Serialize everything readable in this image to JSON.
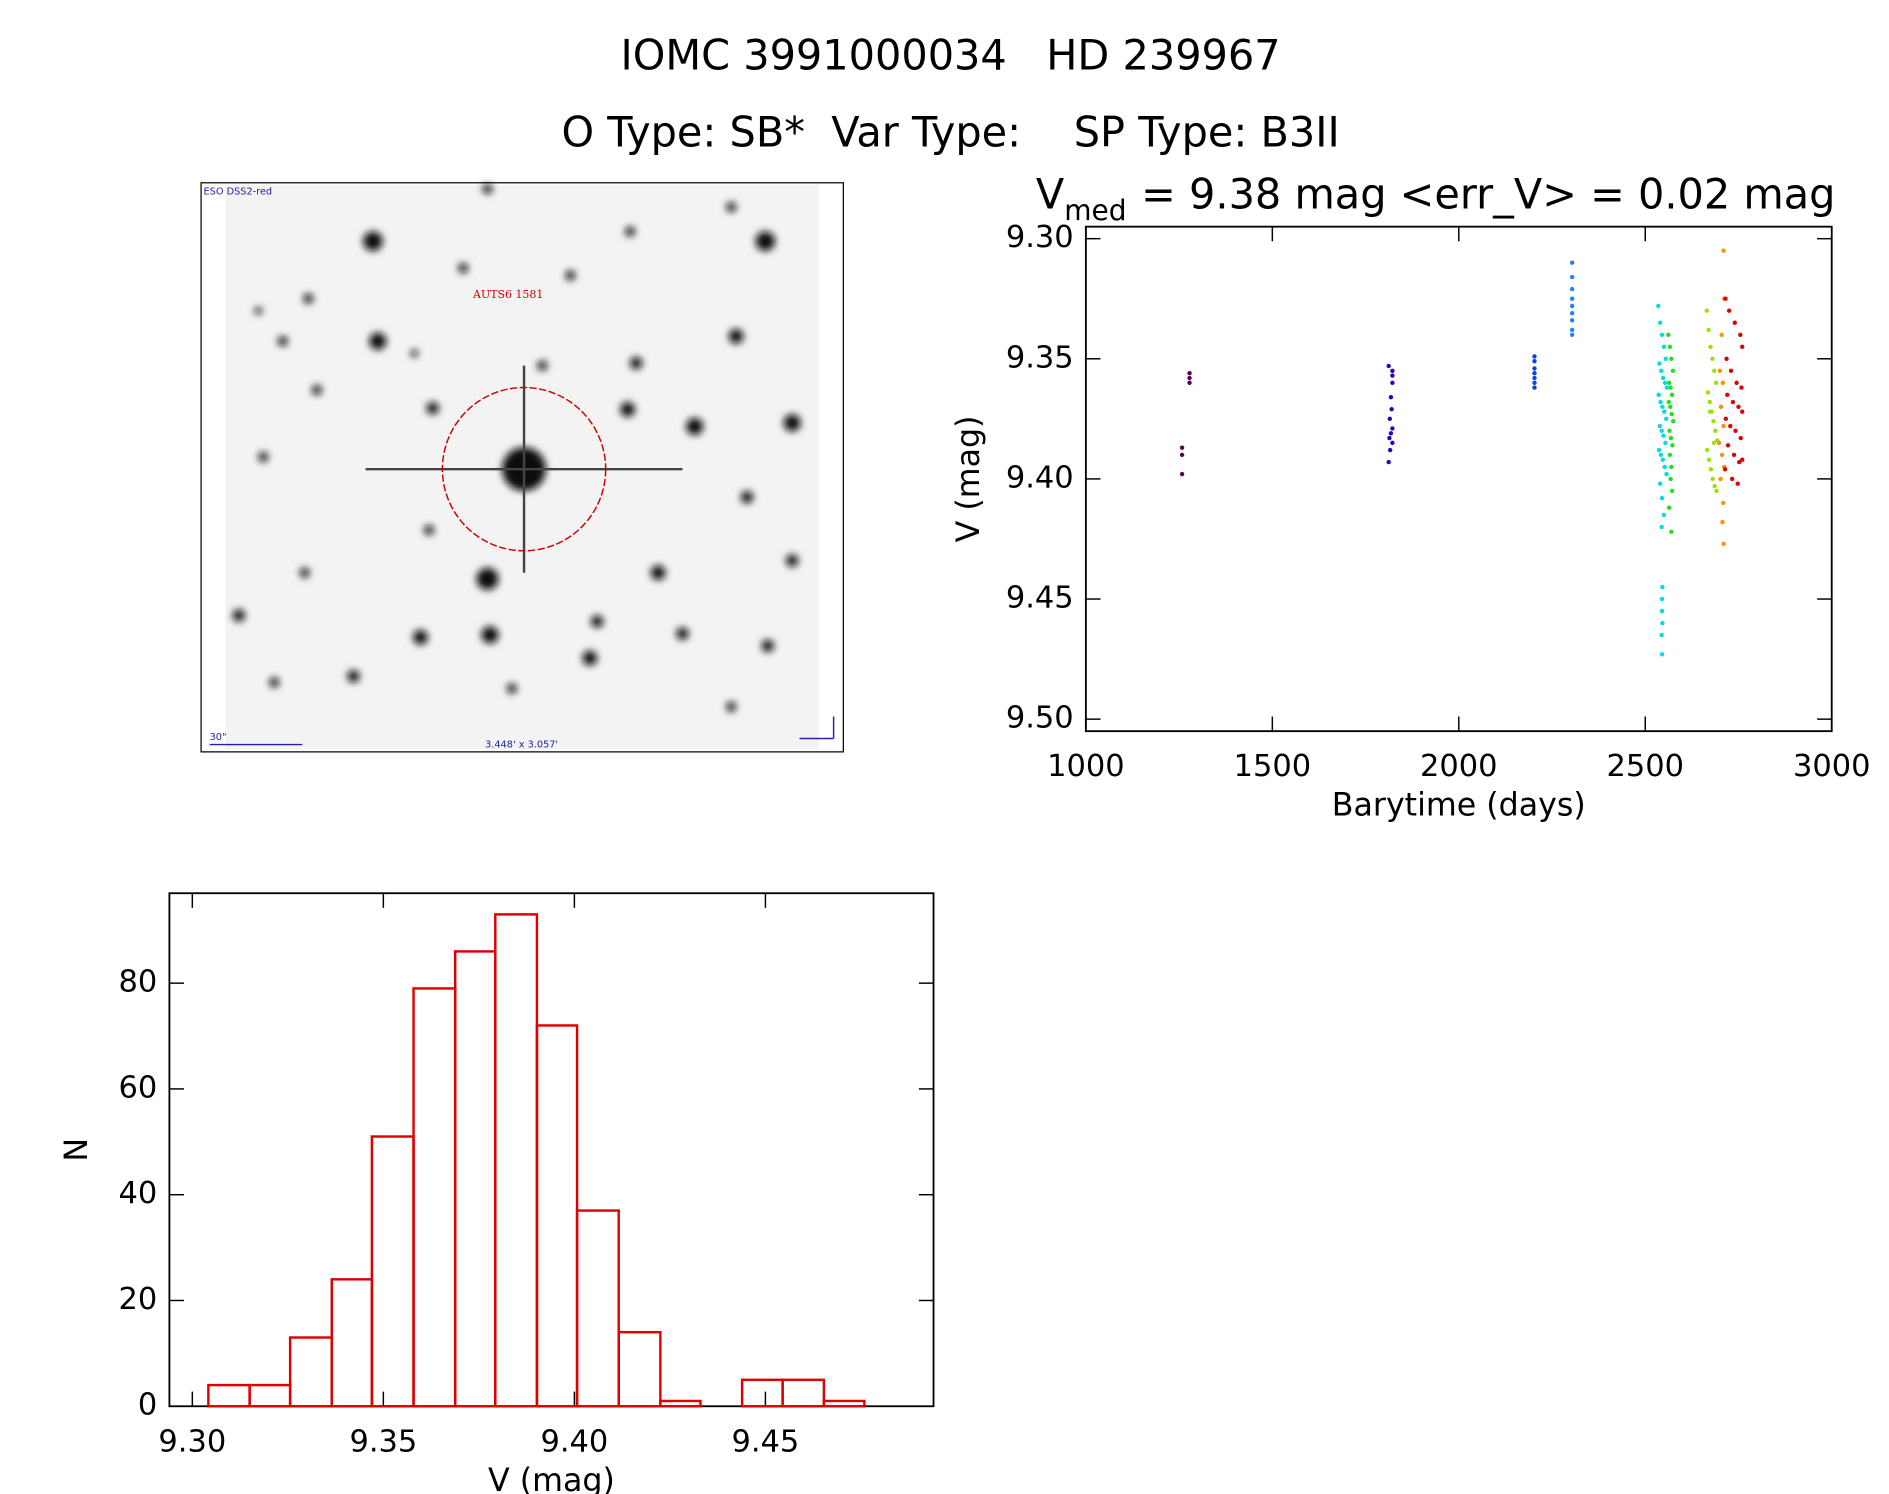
{
  "header": {
    "title": "IOMC 3991000034   HD 239967",
    "subtitle": "O Type: SB*  Var Type:    SP Type: B3II"
  },
  "image": {
    "survey": "ESO DSS2-red",
    "object": "AUTS6 1581",
    "scale": "30\"",
    "size": "3.448' x 3.057'"
  },
  "chart_data": [
    {
      "type": "scatter",
      "title": "V",
      "title_subscript": "med",
      "title_rest": "= 9.38 mag <err_V> = 0.02 mag",
      "x_label": "Barytime (days)",
      "y_label": "V (mag)",
      "xlim": [
        1000,
        3000
      ],
      "xticks": [
        1000,
        1500,
        2000,
        2500,
        3000
      ],
      "ylim": [
        9.295,
        9.505
      ],
      "y_reversed": true,
      "yticks": [
        {
          "value": 9.3,
          "label": "9.30"
        },
        9.35,
        {
          "value": 9.4,
          "label": "9.40"
        },
        9.45,
        {
          "value": 9.5,
          "label": "9.50"
        }
      ],
      "series": [
        {
          "color": "#5a0050",
          "x": [
            1258,
            1258,
            1258,
            1278,
            1278,
            1278
          ],
          "y": [
            9.387,
            9.39,
            9.398,
            9.356,
            9.358,
            9.36
          ]
        },
        {
          "color": "#3000c0",
          "x": [
            1812,
            1822,
            1822,
            1822,
            1818,
            1820,
            1815,
            1822,
            1818,
            1814,
            1822,
            1816,
            1812
          ],
          "y": [
            9.353,
            9.355,
            9.357,
            9.36,
            9.366,
            9.371,
            9.375,
            9.379,
            9.381,
            9.383,
            9.385,
            9.388,
            9.393
          ]
        },
        {
          "color": "#1040e0",
          "x": [
            2203,
            2203,
            2203,
            2203,
            2203,
            2203,
            2203
          ],
          "y": [
            9.349,
            9.351,
            9.354,
            9.356,
            9.358,
            9.36,
            9.362
          ]
        },
        {
          "color": "#2080ff",
          "x": [
            2304,
            2304,
            2304,
            2304,
            2304,
            2304,
            2304,
            2304,
            2304
          ],
          "y": [
            9.31,
            9.316,
            9.321,
            9.325,
            9.328,
            9.331,
            9.334,
            9.338,
            9.34
          ]
        },
        {
          "color": "#00dde0",
          "x": [
            2535,
            2540,
            2545,
            2550,
            2555,
            2538,
            2543,
            2548,
            2553,
            2558,
            2536,
            2541,
            2546,
            2551,
            2556,
            2539,
            2544,
            2549,
            2554,
            2537,
            2542,
            2547,
            2552,
            2557,
            2540,
            2545,
            2550,
            2544,
            2546,
            2545,
            2545,
            2546,
            2544,
            2545
          ],
          "y": [
            9.328,
            9.335,
            9.34,
            9.345,
            9.35,
            9.352,
            9.355,
            9.358,
            9.36,
            9.362,
            9.365,
            9.368,
            9.37,
            9.372,
            9.375,
            9.378,
            9.38,
            9.382,
            9.385,
            9.388,
            9.39,
            9.392,
            9.395,
            9.398,
            9.402,
            9.408,
            9.415,
            9.42,
            9.445,
            9.45,
            9.455,
            9.46,
            9.465,
            9.473
          ]
        },
        {
          "color": "#20e020",
          "x": [
            2562,
            2566,
            2570,
            2574,
            2564,
            2568,
            2572,
            2563,
            2567,
            2571,
            2575,
            2565,
            2569,
            2573,
            2566,
            2570,
            2568,
            2572,
            2564,
            2570
          ],
          "y": [
            9.34,
            9.345,
            9.35,
            9.355,
            9.36,
            9.362,
            9.365,
            9.368,
            9.37,
            9.373,
            9.376,
            9.38,
            9.383,
            9.386,
            9.39,
            9.395,
            9.4,
            9.405,
            9.412,
            9.422
          ]
        },
        {
          "color": "#a0e000",
          "x": [
            2665,
            2670,
            2675,
            2680,
            2685,
            2690,
            2668,
            2673,
            2678,
            2683,
            2688,
            2693,
            2666,
            2671,
            2676,
            2681,
            2686,
            2691,
            2674,
            2684
          ],
          "y": [
            9.33,
            9.338,
            9.345,
            9.35,
            9.355,
            9.36,
            9.364,
            9.368,
            9.372,
            9.376,
            9.38,
            9.384,
            9.388,
            9.392,
            9.396,
            9.4,
            9.403,
            9.405,
            9.372,
            9.385
          ]
        },
        {
          "color": "#ff9000",
          "x": [
            2710,
            2712,
            2705,
            2700,
            2708,
            2703,
            2710,
            2698,
            2706,
            2712,
            2702,
            2709,
            2707,
            2710
          ],
          "y": [
            9.305,
            9.325,
            9.34,
            9.355,
            9.36,
            9.37,
            9.378,
            9.385,
            9.39,
            9.395,
            9.4,
            9.41,
            9.418,
            9.427
          ]
        },
        {
          "color": "#e00000",
          "x": [
            2715,
            2725,
            2740,
            2755,
            2760,
            2718,
            2730,
            2745,
            2758,
            2720,
            2735,
            2750,
            2760,
            2716,
            2728,
            2742,
            2756,
            2722,
            2738,
            2752,
            2714,
            2733,
            2748,
            2760
          ],
          "y": [
            9.325,
            9.33,
            9.335,
            9.34,
            9.345,
            9.35,
            9.355,
            9.36,
            9.362,
            9.365,
            9.368,
            9.37,
            9.372,
            9.375,
            9.378,
            9.38,
            9.383,
            9.386,
            9.39,
            9.393,
            9.396,
            9.4,
            9.402,
            9.392
          ]
        }
      ]
    },
    {
      "type": "histogram",
      "x_label": "V (mag)",
      "y_label": "N",
      "color": "#e00000",
      "xlim": [
        9.294,
        9.494
      ],
      "xticks": [
        {
          "value": 9.3,
          "label": "9.30"
        },
        9.35,
        {
          "value": 9.4,
          "label": "9.40"
        },
        9.45
      ],
      "ylim": [
        0,
        97
      ],
      "yticks": [
        0,
        20,
        40,
        60,
        80
      ],
      "bins": [
        9.3042,
        9.315,
        9.3256,
        9.3365,
        9.347,
        9.3579,
        9.3688,
        9.3793,
        9.3902,
        9.4007,
        9.4116,
        9.4225,
        9.433,
        9.4439,
        9.4545,
        9.4653,
        9.4759
      ],
      "counts": [
        4,
        4,
        13,
        24,
        51,
        79,
        86,
        93,
        72,
        37,
        14,
        1,
        0,
        5,
        5,
        1
      ]
    }
  ]
}
